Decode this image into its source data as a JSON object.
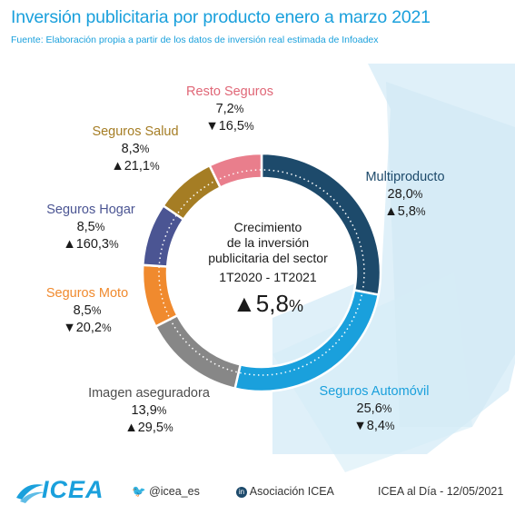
{
  "title": "Inversión publicitaria por producto enero a marzo 2021",
  "subtitle": "Fuente: Elaboración propia a partir de los datos de inversión real estimada de Infoadex",
  "chart_data": {
    "type": "pie",
    "donut": true,
    "categories": [
      "Multiproducto",
      "Seguros Automóvil",
      "Imagen aseguradora",
      "Seguros Moto",
      "Seguros Hogar",
      "Seguros Salud",
      "Resto Seguros"
    ],
    "values": [
      28.0,
      25.6,
      13.9,
      8.5,
      8.5,
      8.3,
      7.2
    ],
    "value_labels": [
      "28,0",
      "25,6",
      "13,9",
      "8,5",
      "8,5",
      "8,3",
      "7,2"
    ],
    "change_labels": [
      "▲5,8",
      "▼8,4",
      "▲29,5",
      "▼20,2",
      "▲160,3",
      "▲21,1",
      "▼16,5"
    ],
    "colors": [
      "#1d4a6b",
      "#1aa0dc",
      "#878787",
      "#f08a2e",
      "#4b5593",
      "#a57d24",
      "#e97e8c"
    ],
    "label_colors": [
      "#1d4a6b",
      "#1aa0dc",
      "#4d4d4d",
      "#f08a2e",
      "#4b5593",
      "#a57d24",
      "#e06777"
    ],
    "unit": "%",
    "center": {
      "lines": [
        "Crecimiento",
        "de la inversión",
        "publicitaria del sector"
      ],
      "period": "1T2020 - 1T2021",
      "value": "▲5,8",
      "unit": "%"
    }
  },
  "footer": {
    "logo": "ICEA",
    "twitter": "@icea_es",
    "linkedin": "Asociación ICEA",
    "date": "ICEA al Día - 12/05/2021"
  }
}
